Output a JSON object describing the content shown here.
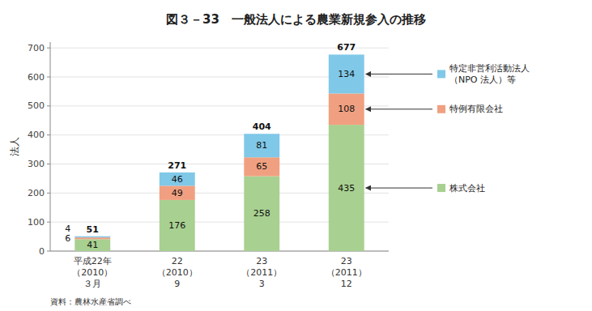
{
  "chart_data": {
    "type": "bar",
    "title": "図３－33　一般法人による農業新規参入の推移",
    "ylabel": "法人",
    "categories": [
      "平成22年\n（2010）\n３月",
      "22\n（2010）\n9",
      "23\n（2011）\n3",
      "23\n（2011）\n12"
    ],
    "series": [
      {
        "name": "株式会社",
        "color": "#a8d090",
        "values": [
          41,
          176,
          258,
          435
        ]
      },
      {
        "name": "特例有限会社",
        "color": "#f0a080",
        "values": [
          6,
          49,
          65,
          108
        ]
      },
      {
        "name": "特定非営利活動法人\n（NPO 法人）等",
        "color": "#80c8e8",
        "values": [
          4,
          46,
          81,
          134
        ]
      }
    ],
    "totals": [
      51,
      271,
      404,
      677
    ],
    "stacked": true,
    "data_labels": true,
    "legend": "right",
    "grid": true,
    "ylim": [
      0,
      720
    ],
    "yticks": [
      0,
      100,
      200,
      300,
      400,
      500,
      600,
      700
    ],
    "annotations": [
      "資料：農林水産省調べ"
    ]
  }
}
